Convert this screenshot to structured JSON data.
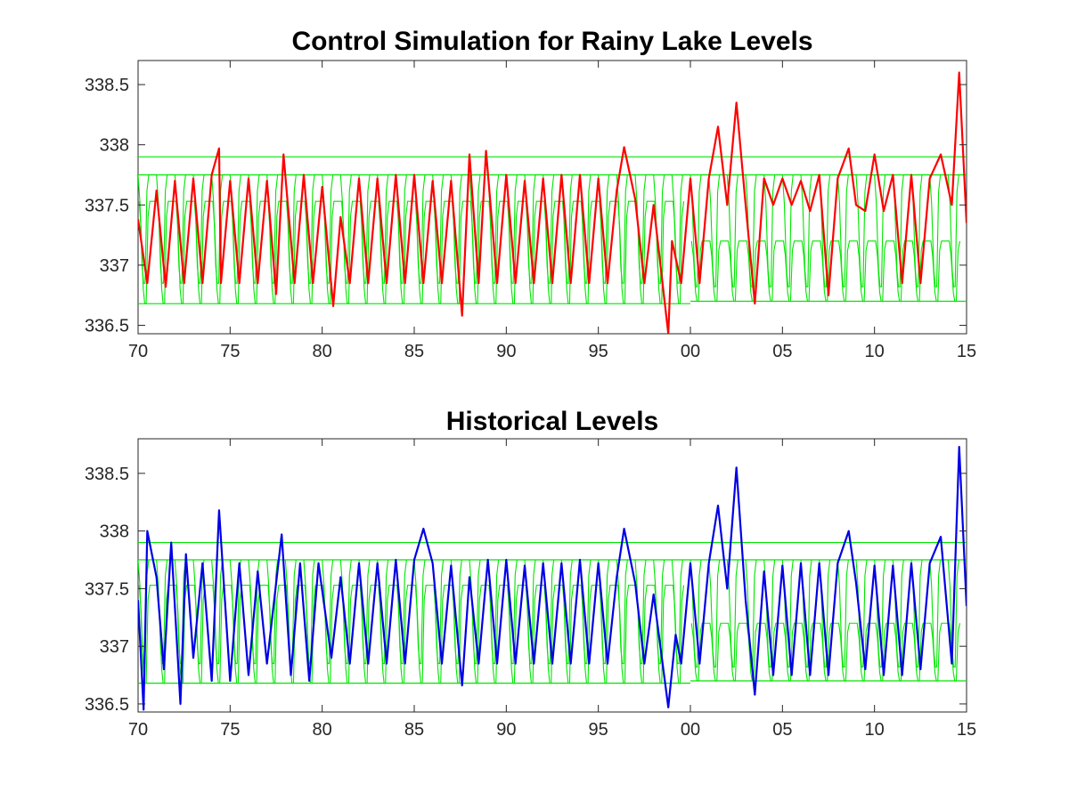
{
  "chart_data": [
    {
      "type": "line",
      "title": "Control Simulation for Rainy Lake Levels",
      "xlabel": "",
      "ylabel": "",
      "xlim": [
        1970,
        2015
      ],
      "ylim": [
        336.43,
        338.7
      ],
      "x_ticks": [
        {
          "value": 1970,
          "label": "70"
        },
        {
          "value": 1975,
          "label": "75"
        },
        {
          "value": 1980,
          "label": "80"
        },
        {
          "value": 1985,
          "label": "85"
        },
        {
          "value": 1990,
          "label": "90"
        },
        {
          "value": 1995,
          "label": "95"
        },
        {
          "value": 2000,
          "label": "00"
        },
        {
          "value": 2005,
          "label": "05"
        },
        {
          "value": 2010,
          "label": "10"
        },
        {
          "value": 2015,
          "label": "15"
        }
      ],
      "y_ticks": [
        {
          "value": 336.5,
          "label": "336.5"
        },
        {
          "value": 337,
          "label": "337"
        },
        {
          "value": 337.5,
          "label": "337.5"
        },
        {
          "value": 338,
          "label": "338"
        },
        {
          "value": 338.5,
          "label": "338.5"
        }
      ],
      "grid": false,
      "reference_lines": [
        {
          "name": "",
          "y": 337.9,
          "x_range": [
            1970,
            2015
          ],
          "color": "#00e600"
        },
        {
          "name": "",
          "y": 337.75,
          "x_range": [
            1970,
            2015
          ],
          "color": "#00e600"
        },
        {
          "name": "",
          "y": 336.68,
          "x_range": [
            1970,
            2000
          ],
          "color": "#00e600"
        },
        {
          "name": "",
          "y": 336.7,
          "x_range": [
            2000,
            2015
          ],
          "color": "#00e600"
        }
      ],
      "rule_curves": {
        "color": "#00e600",
        "period_1970_2000": {
          "x_range": [
            1970,
            2000
          ],
          "upper_max": 337.75,
          "upper_min": 336.85,
          "lower_max": 337.53,
          "lower_min": 336.68
        },
        "period_2000_2015": {
          "x_range": [
            2000,
            2015
          ],
          "upper_max": 337.75,
          "upper_min": 336.82,
          "lower_max": 337.2,
          "lower_min": 336.7
        }
      },
      "series": [
        {
          "name": "",
          "color": "#ff0000",
          "points": [
            [
              1970.0,
              337.38
            ],
            [
              1970.5,
              336.85
            ],
            [
              1971.0,
              337.62
            ],
            [
              1971.5,
              336.82
            ],
            [
              1972.0,
              337.7
            ],
            [
              1972.5,
              336.85
            ],
            [
              1973.0,
              337.72
            ],
            [
              1973.5,
              336.85
            ],
            [
              1974.0,
              337.75
            ],
            [
              1974.4,
              337.97
            ],
            [
              1974.5,
              336.85
            ],
            [
              1975.0,
              337.7
            ],
            [
              1975.5,
              336.85
            ],
            [
              1976.0,
              337.72
            ],
            [
              1976.5,
              336.85
            ],
            [
              1977.0,
              337.7
            ],
            [
              1977.5,
              336.76
            ],
            [
              1977.9,
              337.92
            ],
            [
              1978.5,
              336.85
            ],
            [
              1979.0,
              337.75
            ],
            [
              1979.5,
              336.85
            ],
            [
              1980.0,
              337.65
            ],
            [
              1980.6,
              336.66
            ],
            [
              1981.0,
              337.4
            ],
            [
              1981.5,
              336.85
            ],
            [
              1982.0,
              337.72
            ],
            [
              1982.5,
              336.85
            ],
            [
              1983.0,
              337.72
            ],
            [
              1983.5,
              336.85
            ],
            [
              1984.0,
              337.75
            ],
            [
              1984.5,
              336.85
            ],
            [
              1985.0,
              337.75
            ],
            [
              1985.5,
              336.85
            ],
            [
              1986.0,
              337.7
            ],
            [
              1986.5,
              336.85
            ],
            [
              1987.0,
              337.7
            ],
            [
              1987.6,
              336.58
            ],
            [
              1988.0,
              337.92
            ],
            [
              1988.5,
              336.85
            ],
            [
              1988.9,
              337.95
            ],
            [
              1989.5,
              336.85
            ],
            [
              1990.0,
              337.75
            ],
            [
              1990.5,
              336.85
            ],
            [
              1991.0,
              337.7
            ],
            [
              1991.5,
              336.85
            ],
            [
              1992.0,
              337.72
            ],
            [
              1992.5,
              336.85
            ],
            [
              1993.0,
              337.75
            ],
            [
              1993.5,
              336.85
            ],
            [
              1994.0,
              337.75
            ],
            [
              1994.5,
              336.85
            ],
            [
              1995.0,
              337.72
            ],
            [
              1995.5,
              336.85
            ],
            [
              1996.0,
              337.62
            ],
            [
              1996.4,
              337.98
            ],
            [
              1997.0,
              337.55
            ],
            [
              1997.5,
              336.85
            ],
            [
              1998.0,
              337.5
            ],
            [
              1998.8,
              336.43
            ],
            [
              1999.0,
              337.2
            ],
            [
              1999.5,
              336.85
            ],
            [
              2000.0,
              337.72
            ],
            [
              2000.5,
              336.85
            ],
            [
              2001.0,
              337.72
            ],
            [
              2001.5,
              338.15
            ],
            [
              2002.0,
              337.5
            ],
            [
              2002.5,
              338.35
            ],
            [
              2003.0,
              337.5
            ],
            [
              2003.5,
              336.68
            ],
            [
              2004.0,
              337.72
            ],
            [
              2004.5,
              337.5
            ],
            [
              2005.0,
              337.72
            ],
            [
              2005.5,
              337.5
            ],
            [
              2006.0,
              337.7
            ],
            [
              2006.5,
              337.45
            ],
            [
              2007.0,
              337.75
            ],
            [
              2007.5,
              336.75
            ],
            [
              2008.0,
              337.72
            ],
            [
              2008.6,
              337.97
            ],
            [
              2009.0,
              337.5
            ],
            [
              2009.5,
              337.45
            ],
            [
              2010.0,
              337.92
            ],
            [
              2010.5,
              337.45
            ],
            [
              2011.0,
              337.75
            ],
            [
              2011.5,
              336.85
            ],
            [
              2012.0,
              337.75
            ],
            [
              2012.5,
              336.85
            ],
            [
              2013.0,
              337.72
            ],
            [
              2013.6,
              337.92
            ],
            [
              2014.2,
              337.5
            ],
            [
              2014.6,
              338.6
            ],
            [
              2015.0,
              337.35
            ]
          ]
        }
      ]
    },
    {
      "type": "line",
      "title": "Historical Levels",
      "xlabel": "",
      "ylabel": "",
      "xlim": [
        1970,
        2015
      ],
      "ylim": [
        336.43,
        338.8
      ],
      "x_ticks": [
        {
          "value": 1970,
          "label": "70"
        },
        {
          "value": 1975,
          "label": "75"
        },
        {
          "value": 1980,
          "label": "80"
        },
        {
          "value": 1985,
          "label": "85"
        },
        {
          "value": 1990,
          "label": "90"
        },
        {
          "value": 1995,
          "label": "95"
        },
        {
          "value": 2000,
          "label": "00"
        },
        {
          "value": 2005,
          "label": "05"
        },
        {
          "value": 2010,
          "label": "10"
        },
        {
          "value": 2015,
          "label": "15"
        }
      ],
      "y_ticks": [
        {
          "value": 336.5,
          "label": "336.5"
        },
        {
          "value": 337,
          "label": "337"
        },
        {
          "value": 337.5,
          "label": "337.5"
        },
        {
          "value": 338,
          "label": "338"
        },
        {
          "value": 338.5,
          "label": "338.5"
        }
      ],
      "grid": false,
      "reference_lines": [
        {
          "name": "",
          "y": 337.9,
          "x_range": [
            1970,
            2015
          ],
          "color": "#00e600"
        },
        {
          "name": "",
          "y": 337.75,
          "x_range": [
            1970,
            2015
          ],
          "color": "#00e600"
        },
        {
          "name": "",
          "y": 336.68,
          "x_range": [
            1970,
            2000
          ],
          "color": "#00e600"
        },
        {
          "name": "",
          "y": 336.7,
          "x_range": [
            2000,
            2015
          ],
          "color": "#00e600"
        }
      ],
      "rule_curves": {
        "color": "#00e600",
        "period_1970_2000": {
          "x_range": [
            1970,
            2000
          ],
          "upper_max": 337.75,
          "upper_min": 336.85,
          "lower_max": 337.53,
          "lower_min": 336.68
        },
        "period_2000_2015": {
          "x_range": [
            2000,
            2015
          ],
          "upper_max": 337.75,
          "upper_min": 336.82,
          "lower_max": 337.2,
          "lower_min": 336.7
        }
      },
      "series": [
        {
          "name": "",
          "color": "#0000e6",
          "points": [
            [
              1970.0,
              337.4
            ],
            [
              1970.3,
              336.45
            ],
            [
              1970.5,
              338.0
            ],
            [
              1971.0,
              337.6
            ],
            [
              1971.4,
              336.8
            ],
            [
              1971.8,
              337.9
            ],
            [
              1972.3,
              336.5
            ],
            [
              1972.6,
              337.8
            ],
            [
              1973.0,
              336.9
            ],
            [
              1973.5,
              337.72
            ],
            [
              1974.0,
              336.7
            ],
            [
              1974.4,
              338.18
            ],
            [
              1975.0,
              336.7
            ],
            [
              1975.5,
              337.72
            ],
            [
              1976.0,
              336.75
            ],
            [
              1976.5,
              337.65
            ],
            [
              1977.0,
              336.85
            ],
            [
              1977.8,
              337.97
            ],
            [
              1978.3,
              336.75
            ],
            [
              1978.8,
              337.72
            ],
            [
              1979.3,
              336.7
            ],
            [
              1979.8,
              337.72
            ],
            [
              1980.5,
              336.9
            ],
            [
              1981.0,
              337.6
            ],
            [
              1981.5,
              336.85
            ],
            [
              1982.0,
              337.72
            ],
            [
              1982.5,
              336.85
            ],
            [
              1983.0,
              337.72
            ],
            [
              1983.5,
              336.85
            ],
            [
              1984.0,
              337.75
            ],
            [
              1984.5,
              336.85
            ],
            [
              1985.0,
              337.75
            ],
            [
              1985.5,
              338.02
            ],
            [
              1986.0,
              337.72
            ],
            [
              1986.5,
              336.85
            ],
            [
              1987.0,
              337.7
            ],
            [
              1987.6,
              336.66
            ],
            [
              1988.0,
              337.6
            ],
            [
              1988.5,
              336.85
            ],
            [
              1989.0,
              337.75
            ],
            [
              1989.5,
              336.85
            ],
            [
              1990.0,
              337.75
            ],
            [
              1990.5,
              336.85
            ],
            [
              1991.0,
              337.7
            ],
            [
              1991.5,
              336.85
            ],
            [
              1992.0,
              337.72
            ],
            [
              1992.5,
              336.85
            ],
            [
              1993.0,
              337.72
            ],
            [
              1993.5,
              336.85
            ],
            [
              1994.0,
              337.75
            ],
            [
              1994.5,
              336.85
            ],
            [
              1995.0,
              337.72
            ],
            [
              1995.5,
              336.85
            ],
            [
              1996.0,
              337.6
            ],
            [
              1996.4,
              338.02
            ],
            [
              1997.0,
              337.55
            ],
            [
              1997.5,
              336.85
            ],
            [
              1998.0,
              337.45
            ],
            [
              1998.8,
              336.47
            ],
            [
              1999.2,
              337.1
            ],
            [
              1999.5,
              336.85
            ],
            [
              2000.0,
              337.72
            ],
            [
              2000.5,
              336.85
            ],
            [
              2001.0,
              337.72
            ],
            [
              2001.5,
              338.22
            ],
            [
              2002.0,
              337.5
            ],
            [
              2002.5,
              338.55
            ],
            [
              2003.0,
              337.4
            ],
            [
              2003.5,
              336.58
            ],
            [
              2004.0,
              337.65
            ],
            [
              2004.5,
              336.75
            ],
            [
              2005.0,
              337.7
            ],
            [
              2005.5,
              336.75
            ],
            [
              2006.0,
              337.72
            ],
            [
              2006.5,
              336.75
            ],
            [
              2007.0,
              337.72
            ],
            [
              2007.5,
              336.75
            ],
            [
              2008.0,
              337.72
            ],
            [
              2008.6,
              338.0
            ],
            [
              2009.0,
              337.55
            ],
            [
              2009.5,
              336.8
            ],
            [
              2010.0,
              337.7
            ],
            [
              2010.5,
              336.75
            ],
            [
              2011.0,
              337.7
            ],
            [
              2011.5,
              336.75
            ],
            [
              2012.0,
              337.72
            ],
            [
              2012.5,
              336.8
            ],
            [
              2013.0,
              337.72
            ],
            [
              2013.6,
              337.95
            ],
            [
              2014.2,
              336.85
            ],
            [
              2014.6,
              338.73
            ],
            [
              2015.0,
              337.35
            ]
          ]
        }
      ]
    }
  ]
}
